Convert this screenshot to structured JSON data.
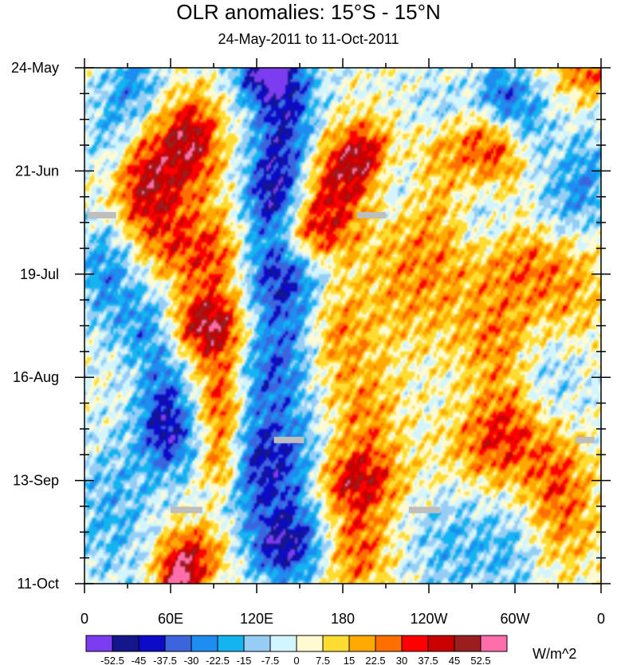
{
  "chart_data": {
    "type": "heatmap",
    "title": "OLR anomalies: 15°S - 15°N",
    "subtitle": "24-May-2011 to 11-Oct-2011",
    "x_tick_labels": [
      "0",
      "60E",
      "120E",
      "180",
      "120W",
      "60W",
      "0"
    ],
    "x_tick_values_deg_east": [
      0,
      60,
      120,
      180,
      240,
      300,
      360
    ],
    "x_range_deg_east": [
      0,
      360
    ],
    "y_tick_labels": [
      "24-May",
      "21-Jun",
      "19-Jul",
      "16-Aug",
      "13-Sep",
      "11-Oct"
    ],
    "y_tick_day_offsets": [
      0,
      28,
      56,
      84,
      112,
      140
    ],
    "y_range_days": [
      0,
      140
    ],
    "y_direction": "time increases downward",
    "colorbar": {
      "units": "W/m^2",
      "levels": [
        "-52.5",
        "-45",
        "-37.5",
        "-30",
        "-22.5",
        "-15",
        "-7.5",
        "0",
        "7.5",
        "15",
        "22.5",
        "30",
        "37.5",
        "45",
        "52.5"
      ],
      "colors": [
        "#7c3cf0",
        "#16168c",
        "#0c0cc8",
        "#3c64dc",
        "#1e8cf0",
        "#14b4f0",
        "#96cdf5",
        "#d2f5ff",
        "#fffad2",
        "#ffdc32",
        "#ffaa00",
        "#ff6e00",
        "#ff0000",
        "#c80000",
        "#9a1e1e",
        "#ff6eaa"
      ]
    },
    "missing_data_color": "#bebebe",
    "missing_data_segments": [
      {
        "lon_start": 2,
        "lon_end": 22,
        "day": 40
      },
      {
        "lon_start": 190,
        "lon_end": 210,
        "day": 40
      },
      {
        "lon_start": 132,
        "lon_end": 153,
        "day": 101
      },
      {
        "lon_start": 342,
        "lon_end": 363,
        "day": 101
      },
      {
        "lon_start": 60,
        "lon_end": 82,
        "day": 120
      },
      {
        "lon_start": 226,
        "lon_end": 248,
        "day": 120
      }
    ],
    "anomaly_features": [
      {
        "lon": 50,
        "day": 28,
        "value": 30,
        "sx": 26,
        "sy": 10
      },
      {
        "lon": 75,
        "day": 18,
        "value": 35,
        "sx": 14,
        "sy": 8
      },
      {
        "lon": 40,
        "day": 35,
        "value": 20,
        "sx": 14,
        "sy": 10
      },
      {
        "lon": 60,
        "day": 48,
        "value": 20,
        "sx": 14,
        "sy": 8
      },
      {
        "lon": 90,
        "day": 52,
        "value": 30,
        "sx": 16,
        "sy": 9
      },
      {
        "lon": 85,
        "day": 70,
        "value": 45,
        "sx": 20,
        "sy": 6
      },
      {
        "lon": 95,
        "day": 83,
        "value": 20,
        "sx": 12,
        "sy": 8
      },
      {
        "lon": 100,
        "day": 95,
        "value": 28,
        "sx": 14,
        "sy": 7
      },
      {
        "lon": 95,
        "day": 108,
        "value": 25,
        "sx": 10,
        "sy": 5
      },
      {
        "lon": 75,
        "day": 132,
        "value": 35,
        "sx": 16,
        "sy": 6
      },
      {
        "lon": 65,
        "day": 140,
        "value": 45,
        "sx": 10,
        "sy": 5
      },
      {
        "lon": 165,
        "day": 35,
        "value": 25,
        "sx": 18,
        "sy": 10
      },
      {
        "lon": 150,
        "day": 45,
        "value": 40,
        "sx": 22,
        "sy": 6
      },
      {
        "lon": 185,
        "day": 27,
        "value": 30,
        "sx": 16,
        "sy": 8
      },
      {
        "lon": 200,
        "day": 23,
        "value": 25,
        "sx": 12,
        "sy": 6
      },
      {
        "lon": 175,
        "day": 70,
        "value": 20,
        "sx": 14,
        "sy": 9
      },
      {
        "lon": 195,
        "day": 95,
        "value": 22,
        "sx": 18,
        "sy": 12
      },
      {
        "lon": 185,
        "day": 112,
        "value": 32,
        "sx": 26,
        "sy": 6
      },
      {
        "lon": 190,
        "day": 130,
        "value": 28,
        "sx": 16,
        "sy": 10
      },
      {
        "lon": 230,
        "day": 60,
        "value": 18,
        "sx": 30,
        "sy": 12
      },
      {
        "lon": 240,
        "day": 40,
        "value": 15,
        "sx": 24,
        "sy": 12
      },
      {
        "lon": 265,
        "day": 18,
        "value": 22,
        "sx": 30,
        "sy": 8
      },
      {
        "lon": 290,
        "day": 25,
        "value": 20,
        "sx": 18,
        "sy": 8
      },
      {
        "lon": 305,
        "day": 52,
        "value": 24,
        "sx": 24,
        "sy": 10
      },
      {
        "lon": 290,
        "day": 75,
        "value": 22,
        "sx": 20,
        "sy": 9
      },
      {
        "lon": 285,
        "day": 103,
        "value": 28,
        "sx": 24,
        "sy": 8
      },
      {
        "lon": 300,
        "day": 92,
        "value": 20,
        "sx": 18,
        "sy": 8
      },
      {
        "lon": 330,
        "day": 110,
        "value": 20,
        "sx": 16,
        "sy": 10
      },
      {
        "lon": 350,
        "day": 0,
        "value": 30,
        "sx": 14,
        "sy": 6
      },
      {
        "lon": 340,
        "day": 60,
        "value": 15,
        "sx": 18,
        "sy": 14
      },
      {
        "lon": 330,
        "day": 125,
        "value": 18,
        "sx": 22,
        "sy": 10
      },
      {
        "lon": 20,
        "day": 20,
        "value": -22,
        "sx": 14,
        "sy": 9
      },
      {
        "lon": 15,
        "day": 55,
        "value": -25,
        "sx": 14,
        "sy": 10
      },
      {
        "lon": 45,
        "day": 70,
        "value": -25,
        "sx": 16,
        "sy": 8
      },
      {
        "lon": 55,
        "day": 90,
        "value": -25,
        "sx": 12,
        "sy": 10
      },
      {
        "lon": 60,
        "day": 100,
        "value": -30,
        "sx": 16,
        "sy": 8
      },
      {
        "lon": 20,
        "day": 120,
        "value": -18,
        "sx": 20,
        "sy": 14
      },
      {
        "lon": 35,
        "day": 5,
        "value": -22,
        "sx": 14,
        "sy": 7
      },
      {
        "lon": 140,
        "day": 15,
        "value": -40,
        "sx": 16,
        "sy": 18
      },
      {
        "lon": 130,
        "day": 38,
        "value": -37,
        "sx": 14,
        "sy": 10
      },
      {
        "lon": 140,
        "day": 55,
        "value": -35,
        "sx": 22,
        "sy": 10
      },
      {
        "lon": 125,
        "day": 0,
        "value": -45,
        "sx": 14,
        "sy": 6
      },
      {
        "lon": 135,
        "day": 80,
        "value": -30,
        "sx": 16,
        "sy": 12
      },
      {
        "lon": 140,
        "day": 110,
        "value": -40,
        "sx": 20,
        "sy": 10
      },
      {
        "lon": 140,
        "day": 130,
        "value": -45,
        "sx": 18,
        "sy": 7
      },
      {
        "lon": 115,
        "day": 100,
        "value": -25,
        "sx": 12,
        "sy": 14
      },
      {
        "lon": 215,
        "day": 30,
        "value": -20,
        "sx": 14,
        "sy": 8
      },
      {
        "lon": 250,
        "day": 12,
        "value": -22,
        "sx": 18,
        "sy": 6
      },
      {
        "lon": 280,
        "day": 40,
        "value": -20,
        "sx": 16,
        "sy": 8
      },
      {
        "lon": 290,
        "day": 8,
        "value": -35,
        "sx": 12,
        "sy": 6
      },
      {
        "lon": 310,
        "day": 16,
        "value": -25,
        "sx": 12,
        "sy": 8
      },
      {
        "lon": 330,
        "day": 38,
        "value": -20,
        "sx": 16,
        "sy": 9
      },
      {
        "lon": 320,
        "day": 85,
        "value": -20,
        "sx": 20,
        "sy": 10
      },
      {
        "lon": 300,
        "day": 130,
        "value": -18,
        "sx": 18,
        "sy": 10
      },
      {
        "lon": 255,
        "day": 130,
        "value": -15,
        "sx": 20,
        "sy": 12
      },
      {
        "lon": 350,
        "day": 30,
        "value": -20,
        "sx": 12,
        "sy": 10
      }
    ]
  }
}
